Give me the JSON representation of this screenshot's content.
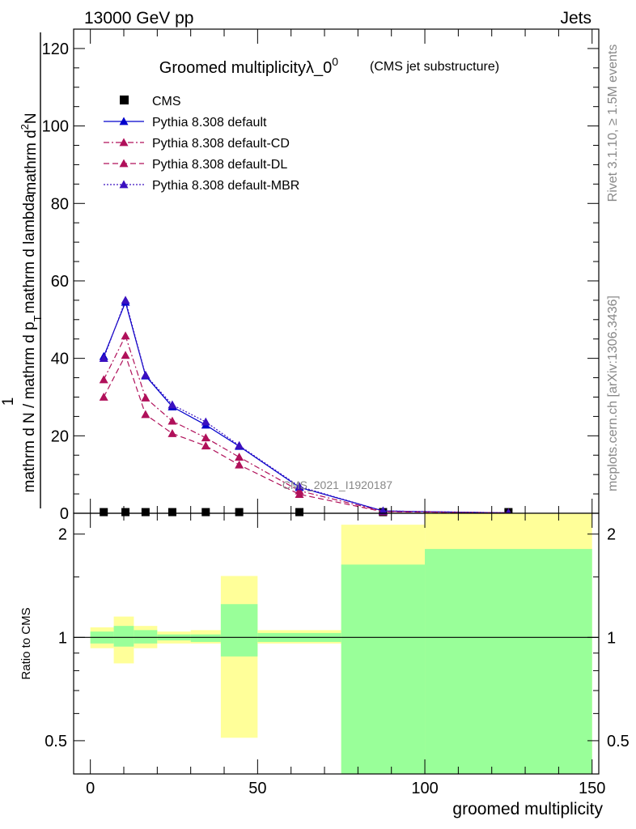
{
  "header": {
    "left": "13000 GeV pp",
    "right": "Jets"
  },
  "side": {
    "rivet": "Rivet 3.1.10, ≥ 1.5M events",
    "mcplots": "mcplots.cern.ch [arXiv:1306.3436]"
  },
  "watermark": "CMS_2021_I1920187",
  "chart_data": [
    {
      "type": "line",
      "title": "Groomed multiplicityλ_0",
      "title_sup": "0",
      "subtitle": "(CMS jet substructure)",
      "ylabel_num_pre": "1",
      "ylabel_num": "mathrm d",
      "ylabel_num_sup": "2",
      "ylabel_num_post": "N",
      "ylabel_den": "mathrm d N / mathrm d p",
      "ylabel_den_mid": "mathrm d p",
      "ylabel_den_post": "mathrm d lambda",
      "ylabel_sub": "T",
      "xlabel": "groomed multiplicity",
      "xlim": [
        -5,
        152
      ],
      "ylim": [
        0,
        125
      ],
      "yticks": [
        0,
        20,
        40,
        60,
        80,
        100,
        120
      ],
      "xticks": [
        0,
        50,
        100,
        150
      ],
      "legend_position": "top-left",
      "series": [
        {
          "name": "CMS",
          "color": "#000000",
          "marker": "square",
          "x": [
            4,
            10.5,
            16.5,
            24.5,
            34.5,
            44.5,
            62.5,
            87.5,
            125
          ],
          "y": [
            0.3,
            0.3,
            0.3,
            0.3,
            0.3,
            0.3,
            0.3,
            0.3,
            0.3
          ]
        },
        {
          "name": "Pythia 8.308 default",
          "color": "#0000cc",
          "marker": "triangle",
          "dash": "",
          "x": [
            4,
            10.5,
            16.5,
            24.5,
            34.5,
            44.5,
            62.5,
            87.5,
            125
          ],
          "y": [
            40.5,
            54.5,
            35.5,
            27.5,
            22.8,
            17.3,
            6.7,
            0.6,
            0.1
          ]
        },
        {
          "name": "Pythia 8.308 default-CD",
          "color": "#b0105a",
          "marker": "triangle",
          "dash": "7,3,2,3",
          "x": [
            4,
            10.5,
            16.5,
            24.5,
            34.5,
            44.5,
            62.5,
            87.5,
            125
          ],
          "y": [
            34.5,
            45.8,
            29.8,
            23.8,
            19.5,
            14.5,
            5.8,
            0.5,
            0.1
          ]
        },
        {
          "name": "Pythia 8.308 default-DL",
          "color": "#b0105a",
          "marker": "triangle",
          "dash": "7,4",
          "x": [
            4,
            10.5,
            16.5,
            24.5,
            34.5,
            44.5,
            62.5,
            87.5,
            125
          ],
          "y": [
            30.0,
            40.8,
            25.5,
            20.6,
            17.4,
            12.5,
            4.9,
            0.4,
            0.1
          ]
        },
        {
          "name": "Pythia 8.308 default-MBR",
          "color": "#3a10c0",
          "marker": "triangle",
          "dash": "2,2",
          "x": [
            4,
            10.5,
            16.5,
            24.5,
            34.5,
            44.5,
            62.5,
            87.5,
            125
          ],
          "y": [
            40.0,
            55.0,
            35.7,
            28.0,
            23.6,
            17.5,
            6.9,
            0.6,
            0.1
          ]
        }
      ]
    },
    {
      "type": "bar",
      "ylabel": "Ratio to CMS",
      "xlim": [
        -5,
        152
      ],
      "ylim": [
        0.4,
        2.3
      ],
      "yscale": "log",
      "yticks": [
        0.5,
        1,
        2
      ],
      "reference_line": 1,
      "bins": [
        {
          "x0": 0,
          "x1": 7,
          "inner": [
            0.96,
            1.04
          ],
          "outer": [
            0.93,
            1.07
          ]
        },
        {
          "x0": 7,
          "x1": 13,
          "inner": [
            0.94,
            1.08
          ],
          "outer": [
            0.84,
            1.15
          ]
        },
        {
          "x0": 13,
          "x1": 20,
          "inner": [
            0.96,
            1.05
          ],
          "outer": [
            0.93,
            1.08
          ]
        },
        {
          "x0": 20,
          "x1": 30,
          "inner": [
            0.98,
            1.02
          ],
          "outer": [
            0.96,
            1.04
          ]
        },
        {
          "x0": 30,
          "x1": 39,
          "inner": [
            0.97,
            1.02
          ],
          "outer": [
            0.96,
            1.05
          ]
        },
        {
          "x0": 39,
          "x1": 50,
          "inner": [
            0.88,
            1.25
          ],
          "outer": [
            0.51,
            1.51
          ]
        },
        {
          "x0": 50,
          "x1": 75,
          "inner": [
            0.97,
            1.03
          ],
          "outer": [
            0.96,
            1.05
          ]
        },
        {
          "x0": 75,
          "x1": 100,
          "inner": [
            0.4,
            1.63
          ],
          "outer": [
            0.4,
            2.13
          ]
        },
        {
          "x0": 100,
          "x1": 150,
          "inner": [
            0.4,
            1.81
          ],
          "outer": [
            0.4,
            2.3
          ]
        }
      ]
    }
  ]
}
